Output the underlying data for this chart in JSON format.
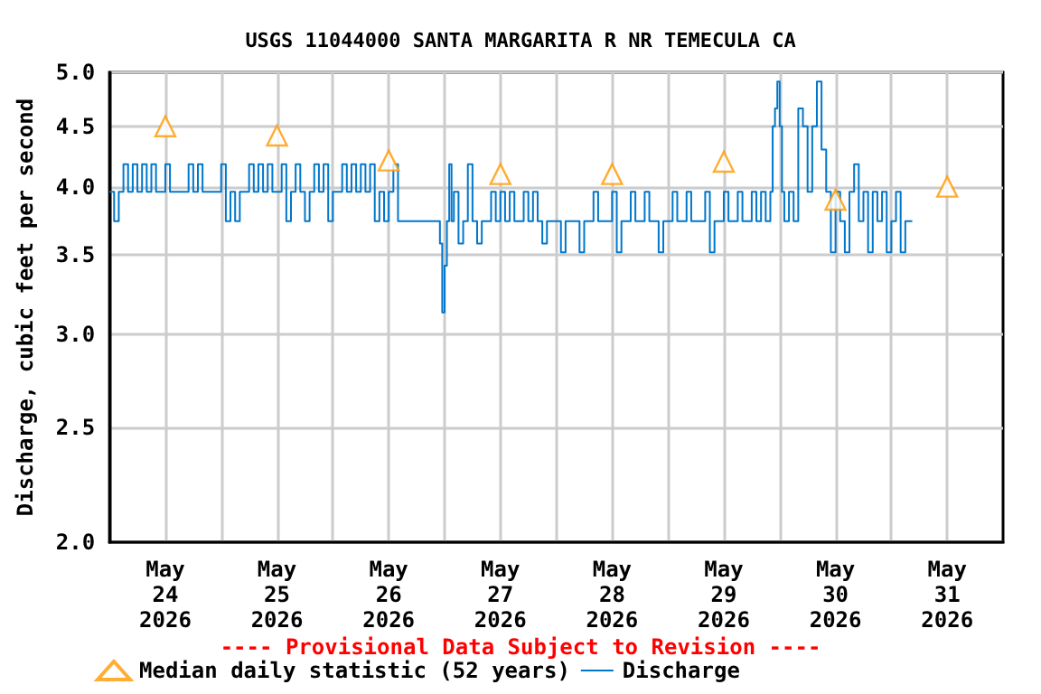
{
  "chart_data": {
    "type": "step",
    "title": "USGS 11044000 SANTA MARGARITA R NR TEMECULA CA",
    "ylabel": "Discharge, cubic feet per second",
    "annotations": [
      "---- Provisional Data Subject to Revision ----"
    ],
    "log": true,
    "grid": true,
    "legend": "bottom",
    "xlim": [
      "2026-05-24T00:00",
      "2026-06-01T00:00"
    ],
    "xticks": [
      {
        "value": "2026-05-24T12:00",
        "label": "May\n24\n2026"
      },
      {
        "value": "2026-05-25T00:00",
        "label": null
      },
      {
        "value": "2026-05-25T12:00",
        "label": "May\n25\n2026"
      },
      {
        "value": "2026-05-26T00:00",
        "label": null
      },
      {
        "value": "2026-05-26T12:00",
        "label": "May\n26\n2026"
      },
      {
        "value": "2026-05-27T00:00",
        "label": null
      },
      {
        "value": "2026-05-27T12:00",
        "label": "May\n27\n2026"
      },
      {
        "value": "2026-05-28T00:00",
        "label": null
      },
      {
        "value": "2026-05-28T12:00",
        "label": "May\n28\n2026"
      },
      {
        "value": "2026-05-29T00:00",
        "label": null
      },
      {
        "value": "2026-05-29T12:00",
        "label": "May\n29\n2026"
      },
      {
        "value": "2026-05-30T00:00",
        "label": null
      },
      {
        "value": "2026-05-30T12:00",
        "label": "May\n30\n2026"
      },
      {
        "value": "2026-05-31T00:00",
        "label": null
      },
      {
        "value": "2026-05-31T12:00",
        "label": "May\n31\n2026"
      }
    ],
    "ylim": [
      2,
      5
    ],
    "yticks": [
      {
        "value": 2,
        "label": "2.0"
      },
      {
        "value": 2.5,
        "label": "2.5"
      },
      {
        "value": 3,
        "label": "3.0"
      },
      {
        "value": 3.5,
        "label": "3.5"
      },
      {
        "value": 4,
        "label": "4.0"
      },
      {
        "value": 4.5,
        "label": "4.5"
      },
      {
        "value": 5,
        "label": "5.0"
      }
    ],
    "series": [
      {
        "name": "Median daily statistic (52 years)",
        "type": "scatter",
        "marker": "triangle",
        "color": "#ff9900",
        "x": [
          "2026-05-24T12:00",
          "2026-05-25T12:00",
          "2026-05-26T12:00",
          "2026-05-27T12:00",
          "2026-05-28T12:00",
          "2026-05-29T12:00",
          "2026-05-30T12:00",
          "2026-05-31T12:00"
        ],
        "values": [
          4.5,
          4.42,
          4.21,
          4.1,
          4.1,
          4.2,
          3.9,
          4.0
        ]
      },
      {
        "name": "Discharge",
        "color": "#0077cc",
        "x": [
          "2026-05-24T00:00",
          "2026-05-24T01:00",
          "2026-05-24T02:00",
          "2026-05-24T03:00",
          "2026-05-24T04:00",
          "2026-05-24T05:00",
          "2026-05-24T06:00",
          "2026-05-24T07:00",
          "2026-05-24T08:00",
          "2026-05-24T09:00",
          "2026-05-24T10:00",
          "2026-05-24T12:00",
          "2026-05-24T13:00",
          "2026-05-24T17:00",
          "2026-05-24T18:00",
          "2026-05-24T19:00",
          "2026-05-24T20:00",
          "2026-05-25T00:00",
          "2026-05-25T01:00",
          "2026-05-25T02:00",
          "2026-05-25T03:00",
          "2026-05-25T04:00",
          "2026-05-25T06:00",
          "2026-05-25T07:00",
          "2026-05-25T08:00",
          "2026-05-25T09:00",
          "2026-05-25T10:00",
          "2026-05-25T11:00",
          "2026-05-25T13:00",
          "2026-05-25T14:00",
          "2026-05-25T15:00",
          "2026-05-25T16:00",
          "2026-05-25T17:00",
          "2026-05-25T18:00",
          "2026-05-25T19:00",
          "2026-05-25T20:00",
          "2026-05-25T21:00",
          "2026-05-25T22:00",
          "2026-05-25T23:00",
          "2026-05-26T00:00",
          "2026-05-26T02:00",
          "2026-05-26T03:00",
          "2026-05-26T04:00",
          "2026-05-26T05:00",
          "2026-05-26T06:00",
          "2026-05-26T07:00",
          "2026-05-26T08:00",
          "2026-05-26T09:00",
          "2026-05-26T10:00",
          "2026-05-26T11:00",
          "2026-05-26T12:00",
          "2026-05-26T13:00",
          "2026-05-26T14:00",
          "2026-05-26T23:00",
          "2026-05-26T23:30",
          "2026-05-27T00:00",
          "2026-05-27T00:30",
          "2026-05-27T01:00",
          "2026-05-27T01:30",
          "2026-05-27T02:00",
          "2026-05-27T03:00",
          "2026-05-27T04:00",
          "2026-05-27T05:00",
          "2026-05-27T06:00",
          "2026-05-27T07:00",
          "2026-05-27T08:00",
          "2026-05-27T10:00",
          "2026-05-27T11:00",
          "2026-05-27T12:00",
          "2026-05-27T13:00",
          "2026-05-27T14:00",
          "2026-05-27T15:00",
          "2026-05-27T17:00",
          "2026-05-27T18:00",
          "2026-05-27T19:00",
          "2026-05-27T20:00",
          "2026-05-27T21:00",
          "2026-05-27T22:00",
          "2026-05-28T01:00",
          "2026-05-28T02:00",
          "2026-05-28T05:00",
          "2026-05-28T06:00",
          "2026-05-28T08:00",
          "2026-05-28T09:00",
          "2026-05-28T12:00",
          "2026-05-28T13:00",
          "2026-05-28T14:00",
          "2026-05-28T16:00",
          "2026-05-28T17:00",
          "2026-05-28T19:00",
          "2026-05-28T20:00",
          "2026-05-28T22:00",
          "2026-05-28T23:00",
          "2026-05-29T01:00",
          "2026-05-29T02:00",
          "2026-05-29T04:00",
          "2026-05-29T05:00",
          "2026-05-29T08:00",
          "2026-05-29T09:00",
          "2026-05-29T10:00",
          "2026-05-29T12:00",
          "2026-05-29T13:00",
          "2026-05-29T15:00",
          "2026-05-29T16:00",
          "2026-05-29T18:00",
          "2026-05-29T19:00",
          "2026-05-29T20:00",
          "2026-05-29T21:00",
          "2026-05-29T22:00",
          "2026-05-29T22:30",
          "2026-05-29T23:00",
          "2026-05-29T23:30",
          "2026-05-30T00:00",
          "2026-05-30T00:30",
          "2026-05-30T01:00",
          "2026-05-30T02:00",
          "2026-05-30T03:00",
          "2026-05-30T04:00",
          "2026-05-30T05:00",
          "2026-05-30T06:00",
          "2026-05-30T07:00",
          "2026-05-30T08:00",
          "2026-05-30T09:00",
          "2026-05-30T10:00",
          "2026-05-30T11:00",
          "2026-05-30T12:00",
          "2026-05-30T13:00",
          "2026-05-30T14:00",
          "2026-05-30T15:00",
          "2026-05-30T16:00",
          "2026-05-30T17:00",
          "2026-05-30T18:00",
          "2026-05-30T19:00",
          "2026-05-30T20:00",
          "2026-05-30T21:00",
          "2026-05-30T22:00",
          "2026-05-30T23:00",
          "2026-05-31T00:00",
          "2026-05-31T01:00",
          "2026-05-31T02:00",
          "2026-05-31T03:00",
          "2026-05-31T04:30"
        ],
        "values": [
          3.96,
          3.74,
          3.96,
          4.18,
          3.96,
          4.18,
          3.96,
          4.18,
          3.96,
          4.18,
          3.96,
          4.18,
          3.96,
          4.18,
          3.96,
          4.18,
          3.96,
          4.18,
          3.74,
          3.96,
          3.74,
          3.96,
          4.18,
          3.96,
          4.18,
          3.96,
          4.18,
          3.96,
          4.18,
          3.74,
          3.96,
          4.18,
          3.96,
          3.74,
          3.96,
          4.18,
          3.96,
          4.18,
          3.74,
          3.96,
          4.18,
          3.96,
          4.18,
          3.96,
          4.18,
          3.96,
          4.18,
          3.74,
          3.96,
          3.74,
          3.96,
          4.18,
          3.74,
          3.58,
          3.13,
          3.43,
          3.74,
          4.18,
          3.74,
          3.96,
          3.58,
          3.74,
          4.18,
          3.74,
          3.58,
          3.74,
          3.96,
          3.74,
          3.96,
          3.74,
          3.96,
          3.74,
          3.96,
          3.74,
          3.96,
          3.74,
          3.58,
          3.74,
          3.52,
          3.74,
          3.52,
          3.74,
          3.96,
          3.74,
          3.96,
          3.52,
          3.74,
          3.96,
          3.74,
          3.96,
          3.74,
          3.52,
          3.74,
          3.96,
          3.74,
          3.96,
          3.74,
          3.96,
          3.52,
          3.74,
          3.96,
          3.74,
          3.96,
          3.74,
          3.96,
          3.74,
          3.96,
          3.74,
          3.96,
          4.5,
          4.66,
          4.91,
          4.5,
          3.96,
          3.74,
          3.96,
          3.74,
          4.66,
          4.5,
          3.96,
          4.5,
          4.91,
          4.3,
          3.96,
          3.52,
          3.96,
          3.74,
          3.52,
          3.96,
          4.18,
          3.74,
          3.96,
          3.52,
          3.96,
          3.74,
          3.96,
          3.52,
          3.74,
          3.96,
          3.52,
          3.74,
          3.74
        ]
      }
    ]
  }
}
